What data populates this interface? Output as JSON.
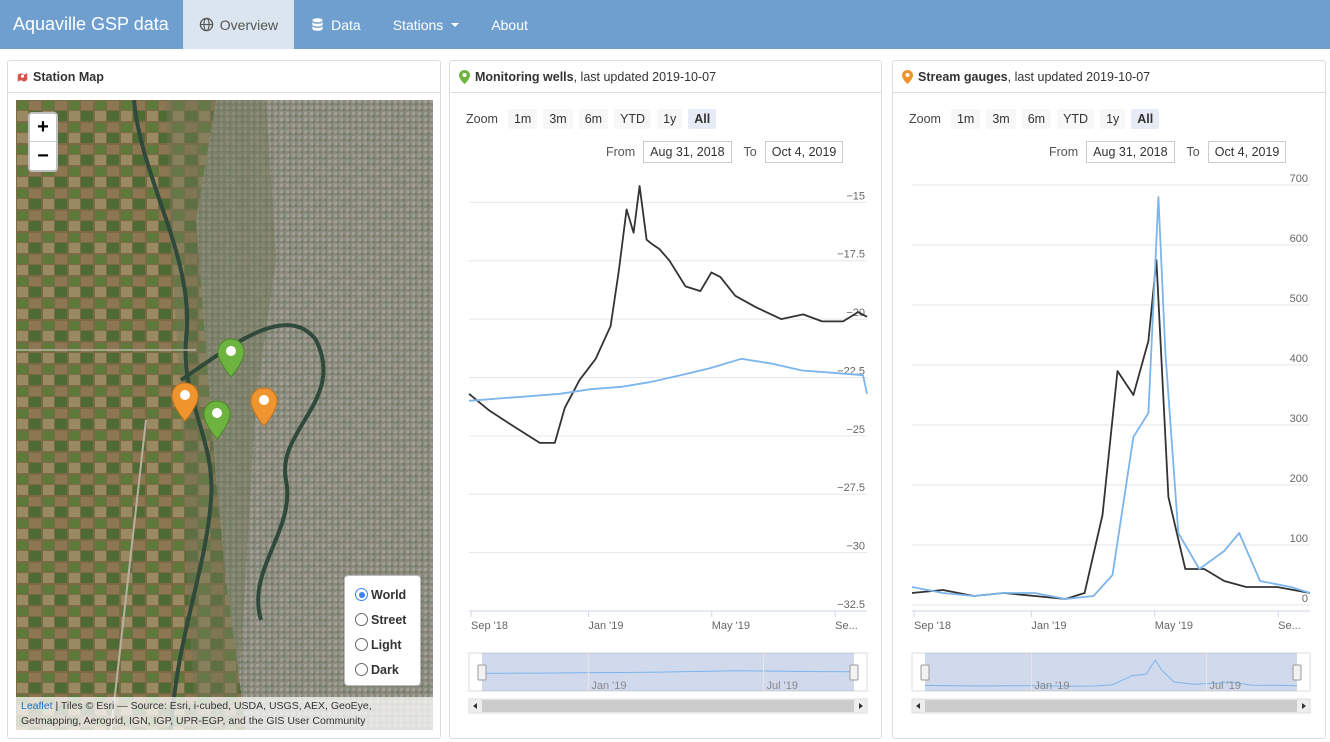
{
  "app": {
    "title": "Aquaville GSP data"
  },
  "nav": {
    "overview": "Overview",
    "data": "Data",
    "stations": "Stations",
    "about": "About"
  },
  "map_panel": {
    "title": "Station Map",
    "layers": [
      "World",
      "Street",
      "Light",
      "Dark"
    ],
    "selected_layer": "World",
    "attribution_link": "Leaflet",
    "attribution_text": " | Tiles © Esri — Source: Esri, i-cubed, USDA, USGS, AEX, GeoEye, Getmapping, Aerogrid, IGN, IGP, UPR-EGP, and the GIS User Community",
    "zoom_in": "+",
    "zoom_out": "−",
    "colors": {
      "well_marker": "#6db33f",
      "gauge_marker": "#f0952e"
    }
  },
  "wells_panel": {
    "title": "Monitoring wells",
    "updated": ", last updated 2019-10-07",
    "zoom_label": "Zoom",
    "zoom_buttons": [
      "1m",
      "3m",
      "6m",
      "YTD",
      "1y",
      "All"
    ],
    "from_label": "From",
    "from_value": "Aug 31, 2018",
    "to_label": "To",
    "to_value": "Oct 4, 2019"
  },
  "gauges_panel": {
    "title": "Stream gauges",
    "updated": ", last updated 2019-10-07",
    "zoom_label": "Zoom",
    "zoom_buttons": [
      "1m",
      "3m",
      "6m",
      "YTD",
      "1y",
      "All"
    ],
    "from_label": "From",
    "from_value": "Aug 31, 2018",
    "to_label": "To",
    "to_value": "Oct 4, 2019"
  },
  "chart_data": [
    {
      "type": "line",
      "x_ticks": [
        "Sep '18",
        "Jan '19",
        "May '19",
        "Se..."
      ],
      "y_ticks": [
        -15,
        -17.5,
        -20,
        -22.5,
        -25,
        -27.5,
        -30,
        -32.5
      ],
      "ylim": [
        -32.5,
        -14
      ],
      "xlim": [
        "2018-08-31",
        "2019-10-04"
      ],
      "navigator_ticks": [
        "Jan '19",
        "Jul '19"
      ],
      "series": [
        {
          "color": "#333333",
          "x": [
            "2018-08-31",
            "2018-09-20",
            "2018-10-15",
            "2018-11-10",
            "2018-11-25",
            "2018-12-05",
            "2018-12-20",
            "2019-01-05",
            "2019-01-20",
            "2019-01-28",
            "2019-02-05",
            "2019-02-12",
            "2019-02-18",
            "2019-02-25",
            "2019-03-03",
            "2019-03-10",
            "2019-03-20",
            "2019-04-05",
            "2019-04-20",
            "2019-05-01",
            "2019-05-10",
            "2019-05-25",
            "2019-06-15",
            "2019-07-10",
            "2019-08-01",
            "2019-08-20",
            "2019-09-10",
            "2019-09-25",
            "2019-10-04"
          ],
          "y": [
            -23.2,
            -23.9,
            -24.6,
            -25.3,
            -25.3,
            -23.8,
            -22.6,
            -21.7,
            -20.3,
            -18.0,
            -15.3,
            -16.3,
            -14.3,
            -16.6,
            -16.8,
            -17.0,
            -17.5,
            -18.6,
            -18.8,
            -18.0,
            -18.2,
            -19.0,
            -19.5,
            -20.0,
            -19.8,
            -20.1,
            -20.1,
            -19.7,
            -19.9
          ]
        },
        {
          "color": "#7cb5ec",
          "x": [
            "2018-08-31",
            "2018-09-30",
            "2018-10-31",
            "2018-11-30",
            "2018-12-31",
            "2019-01-31",
            "2019-02-28",
            "2019-03-31",
            "2019-04-30",
            "2019-05-31",
            "2019-06-30",
            "2019-07-31",
            "2019-08-31",
            "2019-09-30",
            "2019-10-04"
          ],
          "y": [
            -23.5,
            -23.4,
            -23.3,
            -23.2,
            -23.0,
            -22.9,
            -22.7,
            -22.4,
            -22.1,
            -21.7,
            -21.9,
            -22.2,
            -22.3,
            -22.4,
            -23.2
          ]
        }
      ]
    },
    {
      "type": "line",
      "x_ticks": [
        "Sep '18",
        "Jan '19",
        "May '19",
        "Se..."
      ],
      "y_ticks": [
        0,
        100,
        200,
        300,
        400,
        500,
        600,
        700
      ],
      "ylim": [
        -10,
        710
      ],
      "xlim": [
        "2018-08-31",
        "2019-10-04"
      ],
      "navigator_ticks": [
        "Jan '19",
        "Jul '19"
      ],
      "series": [
        {
          "color": "#333333",
          "x": [
            "2018-08-31",
            "2018-10-01",
            "2018-11-01",
            "2018-12-01",
            "2019-01-01",
            "2019-02-01",
            "2019-02-20",
            "2019-03-10",
            "2019-03-25",
            "2019-04-10",
            "2019-04-25",
            "2019-05-03",
            "2019-05-15",
            "2019-06-01",
            "2019-06-20",
            "2019-07-10",
            "2019-08-01",
            "2019-09-01",
            "2019-10-04"
          ],
          "y": [
            20,
            25,
            15,
            20,
            15,
            10,
            20,
            150,
            390,
            350,
            440,
            575,
            180,
            60,
            60,
            40,
            30,
            30,
            20
          ]
        },
        {
          "color": "#7cb5ec",
          "x": [
            "2018-08-31",
            "2018-10-01",
            "2018-11-01",
            "2018-12-01",
            "2019-01-01",
            "2019-02-01",
            "2019-03-01",
            "2019-03-20",
            "2019-04-10",
            "2019-04-25",
            "2019-05-05",
            "2019-05-12",
            "2019-05-25",
            "2019-06-15",
            "2019-07-10",
            "2019-07-25",
            "2019-08-15",
            "2019-09-15",
            "2019-10-04"
          ],
          "y": [
            30,
            20,
            15,
            20,
            20,
            10,
            15,
            50,
            280,
            320,
            680,
            420,
            120,
            60,
            90,
            120,
            40,
            30,
            20
          ]
        }
      ]
    }
  ]
}
